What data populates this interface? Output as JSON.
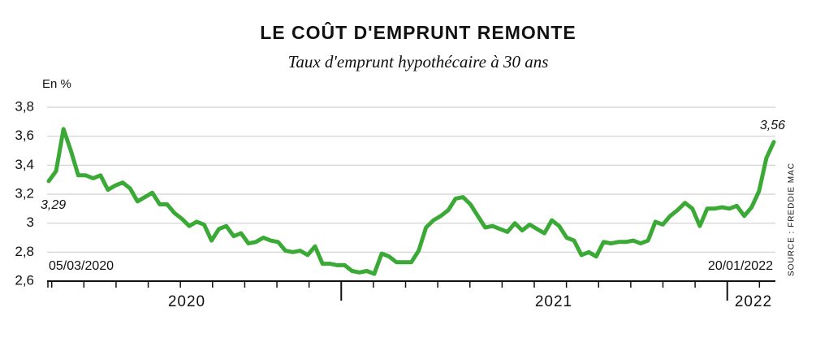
{
  "chart_data": {
    "type": "line",
    "title": "LE COÛT D'EMPRUNT REMONTE",
    "subtitle": "Taux d'emprunt hypothécaire à 30 ans",
    "y_label": "En %",
    "source": "SOURCE : FREDDIE MAC",
    "start_label": "05/03/2020",
    "end_label": "20/01/2022",
    "x_axis_labels": [
      "2020",
      "2021",
      "2022"
    ],
    "color": "#3aa935",
    "grid": true,
    "ylim": [
      2.6,
      3.8
    ],
    "yticks": [
      {
        "value": 2.6,
        "label": "2,6"
      },
      {
        "value": 2.8,
        "label": "2,8"
      },
      3,
      {
        "value": 3.2,
        "label": "3,2"
      },
      {
        "value": 3.4,
        "label": "3,4"
      },
      {
        "value": 3.6,
        "label": "3,6"
      },
      {
        "value": 3.8,
        "label": "3,8"
      }
    ],
    "values": [
      3.29,
      3.36,
      3.65,
      3.5,
      3.33,
      3.33,
      3.31,
      3.33,
      3.23,
      3.26,
      3.28,
      3.24,
      3.15,
      3.18,
      3.21,
      3.13,
      3.13,
      3.07,
      3.03,
      2.98,
      3.01,
      2.99,
      2.88,
      2.96,
      2.98,
      2.91,
      2.93,
      2.86,
      2.87,
      2.9,
      2.88,
      2.87,
      2.81,
      2.8,
      2.81,
      2.78,
      2.84,
      2.72,
      2.72,
      2.71,
      2.71,
      2.67,
      2.66,
      2.67,
      2.65,
      2.79,
      2.77,
      2.73,
      2.73,
      2.73,
      2.81,
      2.97,
      3.02,
      3.05,
      3.09,
      3.17,
      3.18,
      3.13,
      3.05,
      2.97,
      2.98,
      2.96,
      2.94,
      3.0,
      2.95,
      2.99,
      2.96,
      2.93,
      3.02,
      2.98,
      2.9,
      2.88,
      2.78,
      2.8,
      2.77,
      2.87,
      2.86,
      2.87,
      2.87,
      2.88,
      2.86,
      2.88,
      3.01,
      2.99,
      3.05,
      3.09,
      3.14,
      3.1,
      2.98,
      3.1,
      3.1,
      3.11,
      3.1,
      3.12,
      3.05,
      3.11,
      3.22,
      3.45,
      3.56
    ],
    "value_labels": [
      "3,29",
      null,
      null,
      null,
      null,
      null,
      null,
      null,
      null,
      null,
      null,
      null,
      null,
      null,
      null,
      null,
      null,
      null,
      null,
      null,
      null,
      null,
      null,
      null,
      null,
      null,
      null,
      null,
      null,
      null,
      null,
      null,
      null,
      null,
      null,
      null,
      null,
      null,
      null,
      null,
      null,
      null,
      null,
      null,
      null,
      null,
      null,
      null,
      null,
      null,
      null,
      null,
      null,
      null,
      null,
      null,
      null,
      null,
      null,
      null,
      null,
      null,
      null,
      null,
      null,
      null,
      null,
      null,
      null,
      null,
      null,
      null,
      null,
      null,
      null,
      null,
      null,
      null,
      null,
      null,
      null,
      null,
      null,
      null,
      null,
      null,
      null,
      null,
      null,
      null,
      null,
      null,
      null,
      null,
      null,
      null,
      null,
      null,
      "3,56"
    ]
  }
}
